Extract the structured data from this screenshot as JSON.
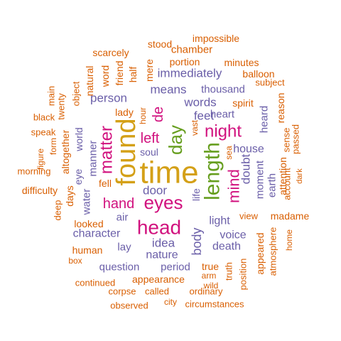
{
  "colors": {
    "orange": "#D95F02",
    "purple": "#6A5EA8",
    "pink": "#D1117E",
    "green": "#669E1E",
    "gold": "#D4A017"
  },
  "words": [
    {
      "text": "time",
      "color": "gold"
    },
    {
      "text": "found",
      "color": "gold"
    },
    {
      "text": "length",
      "color": "green"
    },
    {
      "text": "day",
      "color": "green"
    },
    {
      "text": "head",
      "color": "pink"
    },
    {
      "text": "eyes",
      "color": "pink"
    },
    {
      "text": "night",
      "color": "pink"
    },
    {
      "text": "matter",
      "color": "pink"
    },
    {
      "text": "left",
      "color": "pink"
    },
    {
      "text": "hand",
      "color": "pink"
    },
    {
      "text": "mind",
      "color": "pink"
    },
    {
      "text": "de",
      "color": "pink"
    },
    {
      "text": "body",
      "color": "purple"
    },
    {
      "text": "feet",
      "color": "purple"
    },
    {
      "text": "words",
      "color": "purple"
    },
    {
      "text": "means",
      "color": "purple"
    },
    {
      "text": "thousand",
      "color": "purple"
    },
    {
      "text": "immediately",
      "color": "purple"
    },
    {
      "text": "person",
      "color": "purple"
    },
    {
      "text": "heart",
      "color": "purple"
    },
    {
      "text": "house",
      "color": "purple"
    },
    {
      "text": "doubt",
      "color": "purple"
    },
    {
      "text": "moment",
      "color": "purple"
    },
    {
      "text": "earth",
      "color": "purple"
    },
    {
      "text": "heard",
      "color": "purple"
    },
    {
      "text": "door",
      "color": "purple"
    },
    {
      "text": "manner",
      "color": "purple"
    },
    {
      "text": "water",
      "color": "purple"
    },
    {
      "text": "life",
      "color": "purple"
    },
    {
      "text": "light",
      "color": "purple"
    },
    {
      "text": "idea",
      "color": "purple"
    },
    {
      "text": "air",
      "color": "purple"
    },
    {
      "text": "character",
      "color": "purple"
    },
    {
      "text": "voice",
      "color": "purple"
    },
    {
      "text": "death",
      "color": "purple"
    },
    {
      "text": "nature",
      "color": "purple"
    },
    {
      "text": "lay",
      "color": "purple"
    },
    {
      "text": "question",
      "color": "purple"
    },
    {
      "text": "period",
      "color": "purple"
    },
    {
      "text": "eye",
      "color": "purple"
    },
    {
      "text": "world",
      "color": "purple"
    },
    {
      "text": "soul",
      "color": "purple"
    },
    {
      "text": "impossible",
      "color": "orange"
    },
    {
      "text": "stood",
      "color": "orange"
    },
    {
      "text": "chamber",
      "color": "orange"
    },
    {
      "text": "scarcely",
      "color": "orange"
    },
    {
      "text": "minutes",
      "color": "orange"
    },
    {
      "text": "portion",
      "color": "orange"
    },
    {
      "text": "balloon",
      "color": "orange"
    },
    {
      "text": "natural",
      "color": "orange"
    },
    {
      "text": "word",
      "color": "orange"
    },
    {
      "text": "friend",
      "color": "orange"
    },
    {
      "text": "mere",
      "color": "orange"
    },
    {
      "text": "half",
      "color": "orange"
    },
    {
      "text": "subject",
      "color": "orange"
    },
    {
      "text": "reason",
      "color": "orange"
    },
    {
      "text": "spirit",
      "color": "orange"
    },
    {
      "text": "main",
      "color": "orange"
    },
    {
      "text": "object",
      "color": "orange"
    },
    {
      "text": "twenty",
      "color": "orange"
    },
    {
      "text": "black",
      "color": "orange"
    },
    {
      "text": "speak",
      "color": "orange"
    },
    {
      "text": "figure",
      "color": "orange"
    },
    {
      "text": "form",
      "color": "orange"
    },
    {
      "text": "morning",
      "color": "orange"
    },
    {
      "text": "altogether",
      "color": "orange"
    },
    {
      "text": "difficulty",
      "color": "orange"
    },
    {
      "text": "deep",
      "color": "orange"
    },
    {
      "text": "days",
      "color": "orange"
    },
    {
      "text": "looked",
      "color": "orange"
    },
    {
      "text": "fell",
      "color": "orange"
    },
    {
      "text": "lady",
      "color": "orange"
    },
    {
      "text": "hour",
      "color": "orange"
    },
    {
      "text": "vast",
      "color": "orange"
    },
    {
      "text": "sea",
      "color": "orange"
    },
    {
      "text": "sense",
      "color": "orange"
    },
    {
      "text": "passed",
      "color": "orange"
    },
    {
      "text": "attention",
      "color": "orange"
    },
    {
      "text": "account",
      "color": "orange"
    },
    {
      "text": "dark",
      "color": "orange"
    },
    {
      "text": "view",
      "color": "orange"
    },
    {
      "text": "madame",
      "color": "orange"
    },
    {
      "text": "appeared",
      "color": "orange"
    },
    {
      "text": "atmosphere",
      "color": "orange"
    },
    {
      "text": "home",
      "color": "orange"
    },
    {
      "text": "human",
      "color": "orange"
    },
    {
      "text": "box",
      "color": "orange"
    },
    {
      "text": "true",
      "color": "orange"
    },
    {
      "text": "truth",
      "color": "orange"
    },
    {
      "text": "position",
      "color": "orange"
    },
    {
      "text": "arm",
      "color": "orange"
    },
    {
      "text": "wild",
      "color": "orange"
    },
    {
      "text": "appearance",
      "color": "orange"
    },
    {
      "text": "continued",
      "color": "orange"
    },
    {
      "text": "corpse",
      "color": "orange"
    },
    {
      "text": "called",
      "color": "orange"
    },
    {
      "text": "ordinary",
      "color": "orange"
    },
    {
      "text": "observed",
      "color": "orange"
    },
    {
      "text": "city",
      "color": "orange"
    },
    {
      "text": "circumstances",
      "color": "orange"
    }
  ]
}
